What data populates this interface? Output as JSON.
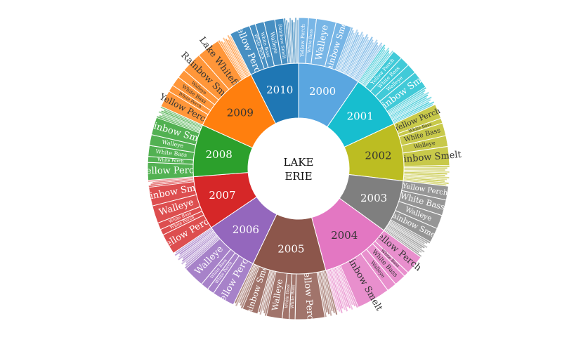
{
  "chart_data": {
    "type": "sunburst",
    "center_label": [
      "LAKE",
      "ERIE"
    ],
    "start_angle_deg": 90,
    "direction": "clockwise",
    "species_colors": {
      "Yellow Perch": "",
      "White Bass": "",
      "Walleye": "",
      "Rainbow Smelt": "",
      "Lake Whitefish": ""
    },
    "years": [
      {
        "year": "2000",
        "color": "#5aa6e0",
        "value": 9.1,
        "children": [
          {
            "name": "Yellow Perch",
            "value": 1.0
          },
          {
            "name": "White Bass",
            "value": 0.8
          },
          {
            "name": "Walleye",
            "value": 2.0
          },
          {
            "name": "Rainbow Smelt",
            "value": 1.6
          },
          {
            "name": "",
            "value": 3.7
          }
        ]
      },
      {
        "year": "2001",
        "color": "#17becf",
        "value": 8.0,
        "children": [
          {
            "name": "",
            "value": 1.2
          },
          {
            "name": "Yellow Perch",
            "value": 1.0
          },
          {
            "name": "White Bass",
            "value": 1.0
          },
          {
            "name": "Walleye",
            "value": 1.0
          },
          {
            "name": "Rainbow Smelt",
            "value": 1.8
          },
          {
            "name": "",
            "value": 2.0
          }
        ]
      },
      {
        "year": "2002",
        "color": "#bcbd22",
        "value": 8.4,
        "children": [
          {
            "name": "Yellow Perch",
            "value": 1.5
          },
          {
            "name": "White Bass",
            "value": 0.5
          },
          {
            "name": "White Bass",
            "value": 1.3
          },
          {
            "name": "Walleye",
            "value": 1.1
          },
          {
            "name": "Rainbow Smelt",
            "value": 1.9
          },
          {
            "name": "",
            "value": 2.1
          }
        ]
      },
      {
        "year": "2003",
        "color": "#7f7f7f",
        "value": 7.7,
        "children": [
          {
            "name": "Yellow Perch",
            "value": 1.4
          },
          {
            "name": "White Bass",
            "value": 1.6
          },
          {
            "name": "Walleye",
            "value": 1.4
          },
          {
            "name": "Rainbow Smelt",
            "value": 1.5
          },
          {
            "name": "",
            "value": 1.8
          }
        ]
      },
      {
        "year": "2004",
        "color": "#e377c2",
        "value": 10.3,
        "children": [
          {
            "name": "Yellow Perch",
            "value": 2.0
          },
          {
            "name": "White Bass",
            "value": 0.5
          },
          {
            "name": "White Bass",
            "value": 1.2
          },
          {
            "name": "Walleye",
            "value": 1.0
          },
          {
            "name": "Rainbow Smelt",
            "value": 3.4
          },
          {
            "name": "",
            "value": 2.2
          }
        ]
      },
      {
        "year": "2005",
        "color": "#8c564b",
        "value": 10.7,
        "children": [
          {
            "name": "",
            "value": 1.3
          },
          {
            "name": "Yellow Perch",
            "value": 3.0
          },
          {
            "name": "White Bass",
            "value": 0.6
          },
          {
            "name": "White Bass",
            "value": 0.7
          },
          {
            "name": "Walleye",
            "value": 1.6
          },
          {
            "name": "",
            "value": 0.9
          },
          {
            "name": "Rainbow Smelt",
            "value": 1.6
          },
          {
            "name": "",
            "value": 1.0
          }
        ]
      },
      {
        "year": "2006",
        "color": "#9467bd",
        "value": 8.0,
        "children": [
          {
            "name": "Yellow Perch",
            "value": 2.3
          },
          {
            "name": "White Perch",
            "value": 0.7
          },
          {
            "name": "White Bass",
            "value": 0.8
          },
          {
            "name": "Walleye",
            "value": 2.2
          },
          {
            "name": "",
            "value": 2.0
          }
        ]
      },
      {
        "year": "2007",
        "color": "#d62728",
        "value": 7.8,
        "children": [
          {
            "name": "Yellow Perch",
            "value": 2.1
          },
          {
            "name": "White Perch",
            "value": 0.6
          },
          {
            "name": "White Bass",
            "value": 0.7
          },
          {
            "name": "Walleye",
            "value": 1.8
          },
          {
            "name": "Rainbow Smelt",
            "value": 1.9
          },
          {
            "name": "",
            "value": 0.7
          }
        ]
      },
      {
        "year": "2008",
        "color": "#2ca02c",
        "value": 7.6,
        "children": [
          {
            "name": "Yellow Perch",
            "value": 1.8
          },
          {
            "name": "White Perch",
            "value": 0.6
          },
          {
            "name": "White Bass",
            "value": 1.1
          },
          {
            "name": "Walleye",
            "value": 1.1
          },
          {
            "name": "Rainbow Smelt",
            "value": 1.8
          },
          {
            "name": "",
            "value": 1.2
          }
        ]
      },
      {
        "year": "2009",
        "color": "#ff7f0e",
        "value": 10.2,
        "children": [
          {
            "name": "Yellow Perch",
            "value": 1.7
          },
          {
            "name": "White Perch",
            "value": 0.7
          },
          {
            "name": "White Bass",
            "value": 1.0
          },
          {
            "name": "Walleye",
            "value": 0.9
          },
          {
            "name": "Rainbow Smelt",
            "value": 2.1
          },
          {
            "name": "Lake Whitefish",
            "value": 2.4
          },
          {
            "name": "",
            "value": 1.4
          }
        ]
      },
      {
        "year": "2010",
        "color": "#1f77b4",
        "value": 7.1,
        "children": [
          {
            "name": "Yellow Perch",
            "value": 2.1
          },
          {
            "name": "White Perch",
            "value": 0.6
          },
          {
            "name": "White Bass",
            "value": 0.9
          },
          {
            "name": "Walleye",
            "value": 1.1
          },
          {
            "name": "Rainbow Smelt",
            "value": 0.9
          },
          {
            "name": "",
            "value": 1.5
          }
        ]
      }
    ]
  }
}
